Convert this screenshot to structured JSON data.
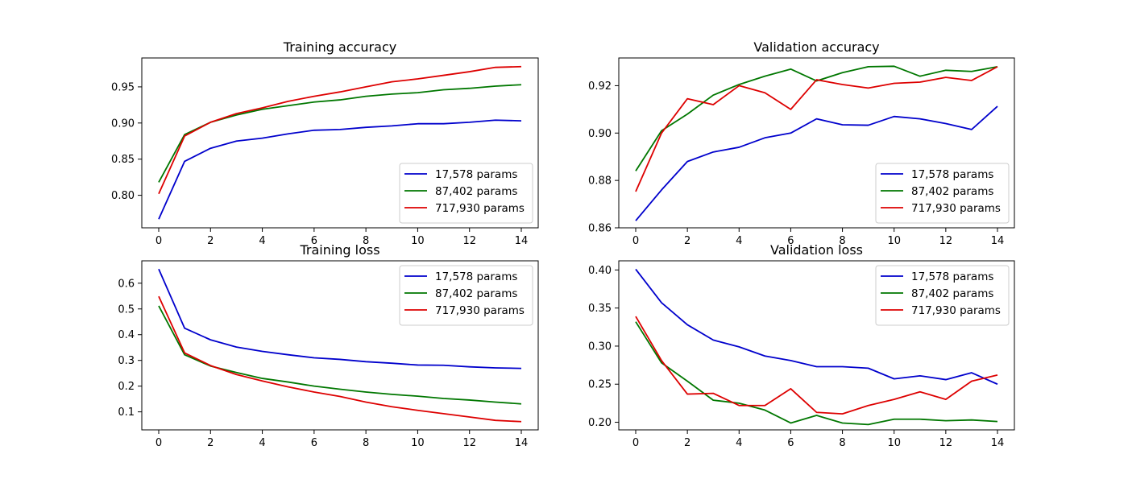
{
  "chart_data": [
    {
      "type": "line",
      "title": "Training accuracy",
      "x": [
        0,
        1,
        2,
        3,
        4,
        5,
        6,
        7,
        8,
        9,
        10,
        11,
        12,
        13,
        14
      ],
      "ylim": [
        0.755,
        0.99
      ],
      "yticks": [
        0.8,
        0.85,
        0.9,
        0.95
      ],
      "xticks": [
        0,
        2,
        4,
        6,
        8,
        10,
        12,
        14
      ],
      "legend_position": "lower-right",
      "grid": false,
      "series": [
        {
          "name": "17,578 params",
          "color": "#0000cc",
          "values": [
            0.767,
            0.847,
            0.865,
            0.875,
            0.879,
            0.885,
            0.89,
            0.891,
            0.894,
            0.896,
            0.899,
            0.899,
            0.901,
            0.904,
            0.903
          ]
        },
        {
          "name": "87,402 params",
          "color": "#007700",
          "values": [
            0.818,
            0.884,
            0.901,
            0.911,
            0.919,
            0.924,
            0.929,
            0.932,
            0.937,
            0.94,
            0.942,
            0.946,
            0.948,
            0.951,
            0.953
          ]
        },
        {
          "name": "717,930 params",
          "color": "#dd0000",
          "values": [
            0.802,
            0.882,
            0.901,
            0.913,
            0.921,
            0.93,
            0.937,
            0.943,
            0.95,
            0.957,
            0.961,
            0.966,
            0.971,
            0.977,
            0.978
          ]
        }
      ]
    },
    {
      "type": "line",
      "title": "Validation accuracy",
      "x": [
        0,
        1,
        2,
        3,
        4,
        5,
        6,
        7,
        8,
        9,
        10,
        11,
        12,
        13,
        14
      ],
      "ylim": [
        0.86,
        0.9317
      ],
      "yticks": [
        0.86,
        0.88,
        0.9,
        0.92
      ],
      "xticks": [
        0,
        2,
        4,
        6,
        8,
        10,
        12,
        14
      ],
      "legend_position": "lower-right",
      "grid": false,
      "series": [
        {
          "name": "17,578 params",
          "color": "#0000cc",
          "values": [
            0.863,
            0.876,
            0.888,
            0.892,
            0.894,
            0.898,
            0.9,
            0.906,
            0.9035,
            0.9033,
            0.907,
            0.906,
            0.904,
            0.9015,
            0.9113
          ]
        },
        {
          "name": "87,402 params",
          "color": "#007700",
          "values": [
            0.884,
            0.901,
            0.908,
            0.916,
            0.9205,
            0.924,
            0.927,
            0.922,
            0.9255,
            0.928,
            0.9282,
            0.924,
            0.9265,
            0.926,
            0.928
          ]
        },
        {
          "name": "717,930 params",
          "color": "#dd0000",
          "values": [
            0.8753,
            0.9,
            0.9145,
            0.912,
            0.92,
            0.917,
            0.91,
            0.9225,
            0.9205,
            0.919,
            0.921,
            0.9215,
            0.9235,
            0.9222,
            0.928
          ]
        }
      ]
    },
    {
      "type": "line",
      "title": "Training loss",
      "x": [
        0,
        1,
        2,
        3,
        4,
        5,
        6,
        7,
        8,
        9,
        10,
        11,
        12,
        13,
        14
      ],
      "ylim": [
        0.03,
        0.687
      ],
      "yticks": [
        0.1,
        0.2,
        0.3,
        0.4,
        0.5,
        0.6
      ],
      "xticks": [
        0,
        2,
        4,
        6,
        8,
        10,
        12,
        14
      ],
      "legend_position": "upper-right",
      "grid": false,
      "series": [
        {
          "name": "17,578 params",
          "color": "#0000cc",
          "values": [
            0.655,
            0.425,
            0.38,
            0.352,
            0.335,
            0.322,
            0.31,
            0.304,
            0.295,
            0.289,
            0.282,
            0.281,
            0.275,
            0.271,
            0.269
          ]
        },
        {
          "name": "87,402 params",
          "color": "#007700",
          "values": [
            0.512,
            0.322,
            0.278,
            0.253,
            0.23,
            0.216,
            0.2,
            0.188,
            0.177,
            0.168,
            0.161,
            0.152,
            0.146,
            0.138,
            0.131
          ]
        },
        {
          "name": "717,930 params",
          "color": "#dd0000",
          "values": [
            0.549,
            0.329,
            0.28,
            0.245,
            0.22,
            0.197,
            0.177,
            0.16,
            0.138,
            0.12,
            0.106,
            0.093,
            0.08,
            0.067,
            0.062
          ]
        }
      ]
    },
    {
      "type": "line",
      "title": "Validation loss",
      "x": [
        0,
        1,
        2,
        3,
        4,
        5,
        6,
        7,
        8,
        9,
        10,
        11,
        12,
        13,
        14
      ],
      "ylim": [
        0.19,
        0.412
      ],
      "yticks": [
        0.2,
        0.25,
        0.3,
        0.35,
        0.4
      ],
      "xticks": [
        0,
        2,
        4,
        6,
        8,
        10,
        12,
        14
      ],
      "legend_position": "upper-right",
      "grid": false,
      "series": [
        {
          "name": "17,578 params",
          "color": "#0000cc",
          "values": [
            0.401,
            0.357,
            0.328,
            0.308,
            0.299,
            0.287,
            0.281,
            0.273,
            0.273,
            0.271,
            0.257,
            0.261,
            0.256,
            0.265,
            0.25
          ]
        },
        {
          "name": "87,402 params",
          "color": "#007700",
          "values": [
            0.332,
            0.278,
            0.254,
            0.229,
            0.225,
            0.216,
            0.199,
            0.209,
            0.199,
            0.197,
            0.204,
            0.204,
            0.202,
            0.203,
            0.201
          ]
        },
        {
          "name": "717,930 params",
          "color": "#dd0000",
          "values": [
            0.339,
            0.281,
            0.237,
            0.238,
            0.222,
            0.222,
            0.244,
            0.213,
            0.211,
            0.222,
            0.23,
            0.24,
            0.23,
            0.254,
            0.262
          ]
        }
      ]
    }
  ]
}
